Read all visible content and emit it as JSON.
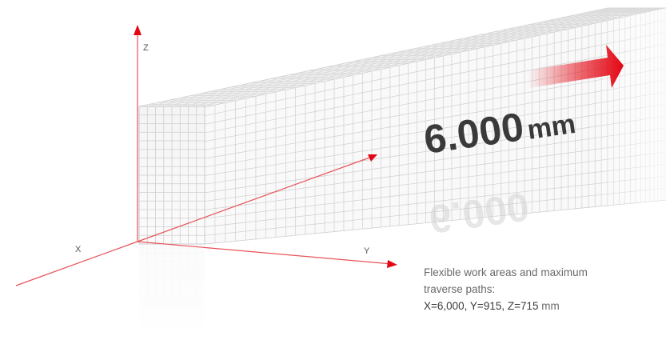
{
  "axes": {
    "x_label": "X",
    "y_label": "Y",
    "z_label": "Z"
  },
  "length_badge": {
    "number": "6.000",
    "unit": "mm"
  },
  "caption": {
    "line1": "Flexible work areas and maximum",
    "line2": "traverse paths:",
    "values_bold": "X=6,000, Y=915, Z=715",
    "values_unit": " mm"
  },
  "colors": {
    "axis_red": "#e8525a",
    "arrow_red": "#e30613",
    "grid_line": "#cfcfcf",
    "text_dark": "#3a3a3a",
    "text_gray": "#6a6a6a"
  }
}
